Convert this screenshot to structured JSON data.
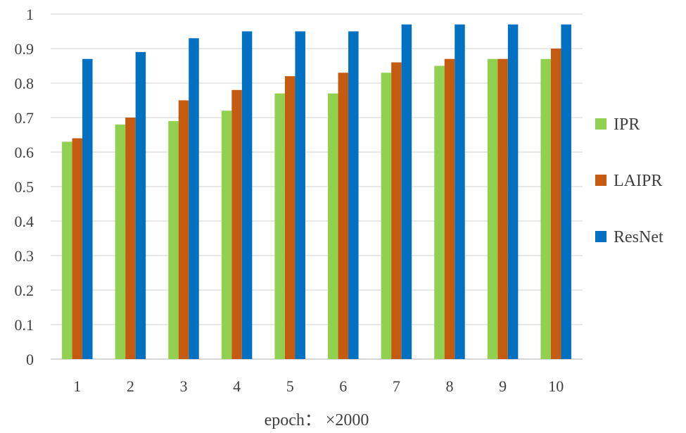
{
  "chart_data": {
    "type": "bar",
    "title": "",
    "xlabel": "epoch： ×2000",
    "ylabel": "",
    "ylim": [
      0,
      1
    ],
    "yticks": [
      "0",
      "0.1",
      "0.2",
      "0.3",
      "0.4",
      "0.5",
      "0.6",
      "0.7",
      "0.8",
      "0.9",
      "1"
    ],
    "categories": [
      "1",
      "2",
      "3",
      "4",
      "5",
      "6",
      "7",
      "8",
      "9",
      "10"
    ],
    "grid": true,
    "legend_position": "right",
    "series": [
      {
        "name": "IPR",
        "color": "#92d050",
        "values": [
          0.63,
          0.68,
          0.69,
          0.72,
          0.77,
          0.77,
          0.83,
          0.85,
          0.87,
          0.87
        ]
      },
      {
        "name": "LAIPR",
        "color": "#c55a11",
        "values": [
          0.64,
          0.7,
          0.75,
          0.78,
          0.82,
          0.83,
          0.86,
          0.87,
          0.87,
          0.9
        ]
      },
      {
        "name": "ResNet",
        "color": "#0070c0",
        "values": [
          0.87,
          0.89,
          0.93,
          0.95,
          0.95,
          0.95,
          0.97,
          0.97,
          0.97,
          0.97
        ]
      }
    ]
  }
}
